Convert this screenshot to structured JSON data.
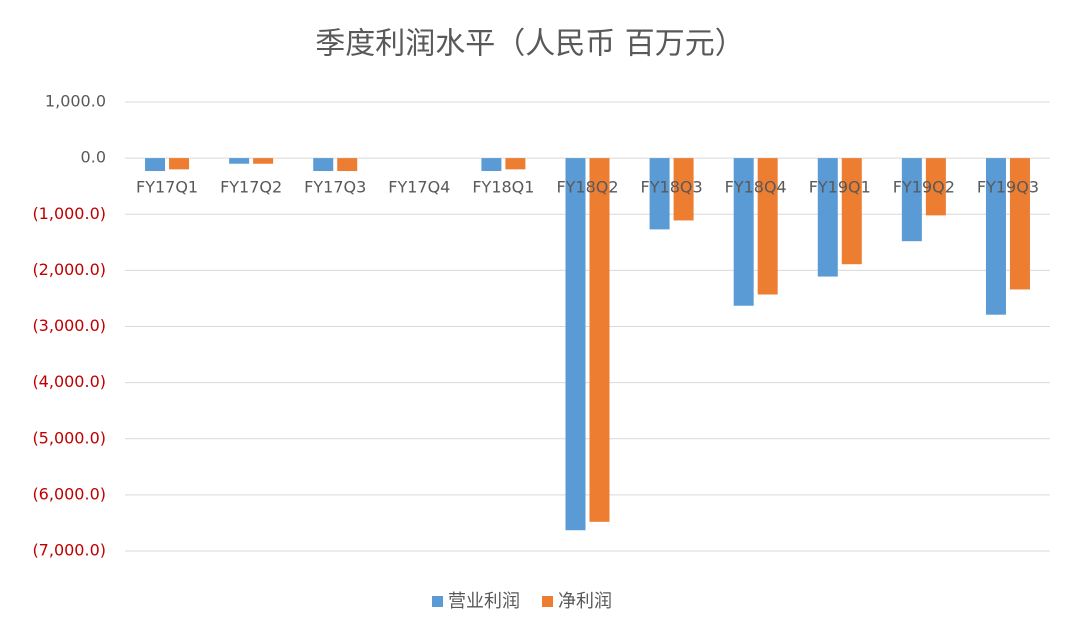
{
  "chart_data": {
    "type": "bar",
    "title": "季度利润水平（人民币 百万元）",
    "categories": [
      "FY17Q1",
      "FY17Q2",
      "FY17Q3",
      "FY17Q4",
      "FY18Q1",
      "FY18Q2",
      "FY18Q3",
      "FY18Q4",
      "FY19Q1",
      "FY19Q2",
      "FY19Q3"
    ],
    "series": [
      {
        "name": "营业利润",
        "color": "#5b9bd5",
        "values": [
          -230,
          -100,
          -230,
          0,
          -230,
          -6630,
          -1270,
          -2630,
          -2110,
          -1480,
          -2790
        ]
      },
      {
        "name": "净利润",
        "color": "#ed7d31",
        "values": [
          -200,
          -100,
          -230,
          0,
          -200,
          -6480,
          -1110,
          -2430,
          -1890,
          -1020,
          -2340
        ]
      }
    ],
    "ylim": [
      -7000,
      1000
    ],
    "yticks": [
      {
        "value": 1000,
        "label": "1,000.0"
      },
      {
        "value": 0,
        "label": "0.0"
      },
      {
        "value": -1000,
        "label": "(1,000.0)"
      },
      {
        "value": -2000,
        "label": "(2,000.0)"
      },
      {
        "value": -3000,
        "label": "(3,000.0)"
      },
      {
        "value": -4000,
        "label": "(4,000.0)"
      },
      {
        "value": -5000,
        "label": "(5,000.0)"
      },
      {
        "value": -6000,
        "label": "(6,000.0)"
      },
      {
        "value": -7000,
        "label": "(7,000.0)"
      }
    ],
    "negative_tick_color": "#c00000",
    "grid": true,
    "legend": "bottom"
  }
}
